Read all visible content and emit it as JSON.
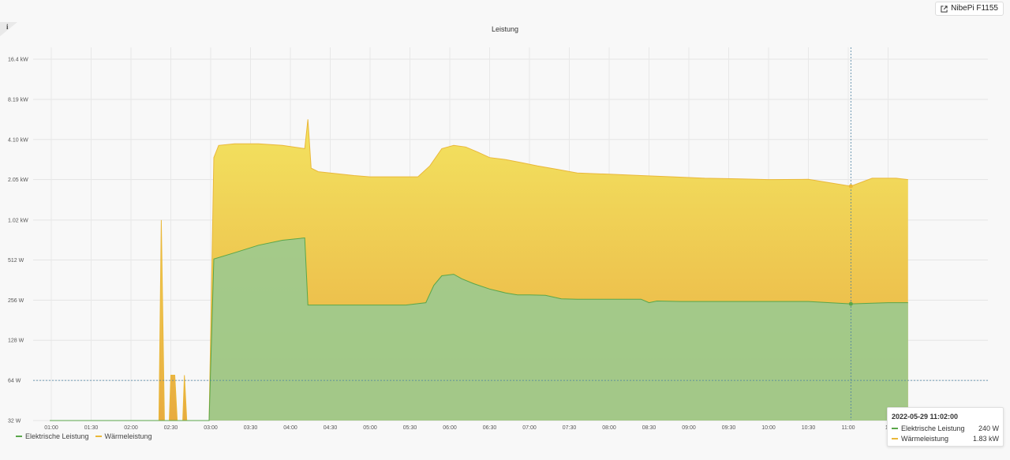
{
  "header": {
    "link_label": "NibePi F1155",
    "info_icon": "info-icon"
  },
  "chart_data": {
    "type": "area",
    "title": "Leistung",
    "xlabel": "",
    "ylabel": "",
    "yscale": "log2",
    "x_ticks": [
      "01:00",
      "01:30",
      "02:00",
      "02:30",
      "03:00",
      "03:30",
      "04:00",
      "04:30",
      "05:00",
      "05:30",
      "06:00",
      "06:30",
      "07:00",
      "07:30",
      "08:00",
      "08:30",
      "09:00",
      "09:30",
      "10:00",
      "10:30",
      "11:00",
      "11"
    ],
    "y_ticks": [
      {
        "label": "16.4 kW",
        "value": 16400
      },
      {
        "label": "8.19 kW",
        "value": 8190
      },
      {
        "label": "4.10 kW",
        "value": 4100
      },
      {
        "label": "2.05 kW",
        "value": 2050
      },
      {
        "label": "1.02 kW",
        "value": 1020
      },
      {
        "label": "512 W",
        "value": 512
      },
      {
        "label": "256 W",
        "value": 256
      },
      {
        "label": "128 W",
        "value": 128
      },
      {
        "label": "64 W",
        "value": 64
      },
      {
        "label": "32 W",
        "value": 32
      }
    ],
    "ylim": [
      32,
      16400
    ],
    "grid": true,
    "legend_position": "bottom-left",
    "threshold_line": 64,
    "series": [
      {
        "name": "Elektrische Leistung",
        "color": "#5aa64a",
        "points": [
          [
            0.98,
            32
          ],
          [
            2.98,
            32
          ],
          [
            3.04,
            520
          ],
          [
            3.3,
            580
          ],
          [
            3.6,
            660
          ],
          [
            3.9,
            720
          ],
          [
            4.18,
            750
          ],
          [
            4.22,
            235
          ],
          [
            5.0,
            235
          ],
          [
            5.45,
            235
          ],
          [
            5.7,
            245
          ],
          [
            5.8,
            330
          ],
          [
            5.9,
            390
          ],
          [
            6.05,
            400
          ],
          [
            6.15,
            370
          ],
          [
            6.3,
            340
          ],
          [
            6.5,
            310
          ],
          [
            6.7,
            290
          ],
          [
            6.85,
            280
          ],
          [
            7.0,
            280
          ],
          [
            7.2,
            278
          ],
          [
            7.4,
            262
          ],
          [
            7.6,
            260
          ],
          [
            8.0,
            260
          ],
          [
            8.4,
            260
          ],
          [
            8.5,
            245
          ],
          [
            8.6,
            252
          ],
          [
            8.9,
            250
          ],
          [
            9.3,
            250
          ],
          [
            9.7,
            250
          ],
          [
            10.1,
            250
          ],
          [
            10.5,
            250
          ],
          [
            11.033,
            240
          ],
          [
            11.5,
            245
          ],
          [
            11.75,
            245
          ]
        ]
      },
      {
        "name": "Wärmeleistung",
        "color": "#eab839",
        "points": [
          [
            0.98,
            32
          ],
          [
            2.35,
            32
          ],
          [
            2.38,
            1020
          ],
          [
            2.42,
            32
          ],
          [
            2.48,
            32
          ],
          [
            2.5,
            70
          ],
          [
            2.55,
            70
          ],
          [
            2.58,
            32
          ],
          [
            2.65,
            32
          ],
          [
            2.67,
            70
          ],
          [
            2.7,
            32
          ],
          [
            2.98,
            32
          ],
          [
            3.04,
            3000
          ],
          [
            3.1,
            3700
          ],
          [
            3.3,
            3800
          ],
          [
            3.6,
            3800
          ],
          [
            3.9,
            3700
          ],
          [
            4.18,
            3500
          ],
          [
            4.22,
            5800
          ],
          [
            4.26,
            2500
          ],
          [
            4.35,
            2350
          ],
          [
            4.5,
            2300
          ],
          [
            4.8,
            2200
          ],
          [
            5.0,
            2150
          ],
          [
            5.4,
            2150
          ],
          [
            5.6,
            2150
          ],
          [
            5.75,
            2600
          ],
          [
            5.9,
            3500
          ],
          [
            6.05,
            3700
          ],
          [
            6.2,
            3600
          ],
          [
            6.35,
            3300
          ],
          [
            6.5,
            3000
          ],
          [
            6.7,
            2900
          ],
          [
            6.9,
            2750
          ],
          [
            7.1,
            2600
          ],
          [
            7.35,
            2450
          ],
          [
            7.6,
            2300
          ],
          [
            8.0,
            2250
          ],
          [
            8.4,
            2200
          ],
          [
            8.8,
            2150
          ],
          [
            9.2,
            2100
          ],
          [
            9.6,
            2080
          ],
          [
            10.0,
            2050
          ],
          [
            10.5,
            2060
          ],
          [
            11.033,
            1830
          ],
          [
            11.3,
            2100
          ],
          [
            11.6,
            2100
          ],
          [
            11.75,
            2050
          ]
        ]
      }
    ],
    "tooltip": {
      "time": "2022-05-29 11:02:00",
      "x": 11.033,
      "rows": [
        {
          "name": "Elektrische Leistung",
          "value": "240 W"
        },
        {
          "name": "Wärmeleistung",
          "value": "1.83 kW"
        }
      ]
    }
  }
}
